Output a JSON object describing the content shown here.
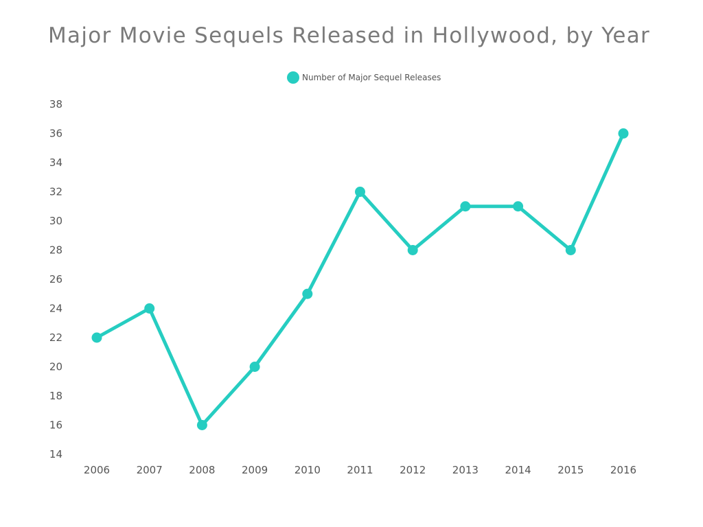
{
  "chart_data": {
    "type": "line",
    "title": "Major Movie Sequels Released in Hollywood, by Year",
    "xlabel": "",
    "ylabel": "",
    "categories": [
      "2006",
      "2007",
      "2008",
      "2009",
      "2010",
      "2011",
      "2012",
      "2013",
      "2014",
      "2015",
      "2016"
    ],
    "series": [
      {
        "name": "Number of Major Sequel Releases",
        "color": "#26cdc1",
        "values": [
          22,
          24,
          16,
          20,
          25,
          32,
          28,
          31,
          31,
          28,
          36
        ]
      }
    ],
    "ylim": [
      14,
      38
    ],
    "yticks": [
      "14",
      "16",
      "18",
      "20",
      "22",
      "24",
      "26",
      "28",
      "30",
      "32",
      "34",
      "36",
      "38"
    ],
    "grid": false,
    "legend_position": "top-center"
  }
}
